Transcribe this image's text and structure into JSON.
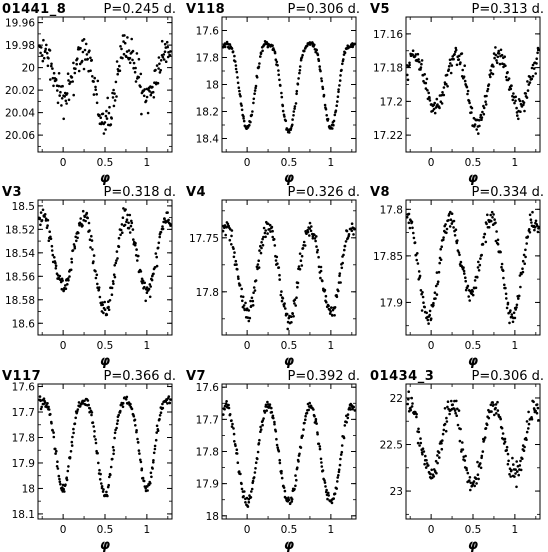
{
  "chart_data": [
    {
      "type": "scatter",
      "star": "01441_8",
      "period": "P=0.245 d.",
      "xlabel": "φ",
      "xlim": [
        -0.3,
        1.3
      ],
      "ylim": [
        19.955,
        20.075
      ],
      "yticks": [
        {
          "v": 19.96,
          "label": "19.96"
        },
        {
          "v": 19.98,
          "label": "19.98"
        },
        {
          "v": 20.0,
          "label": "20"
        },
        {
          "v": 20.02,
          "label": "20.02"
        },
        {
          "v": 20.04,
          "label": "20.04"
        },
        {
          "v": 20.06,
          "label": "20.06"
        }
      ],
      "xticks": [
        {
          "v": 0,
          "label": "0"
        },
        {
          "v": 0.5,
          "label": "0.5"
        },
        {
          "v": 1,
          "label": "1"
        }
      ],
      "curve": {
        "bright": 19.985,
        "faint": 20.05,
        "phase_bright": 0.25,
        "secondary_depth": 0.62,
        "shape": "ew",
        "scatter": 0.007
      },
      "y_inverted": true
    },
    {
      "type": "scatter",
      "star": "V118",
      "period": "P=0.306 d.",
      "xlabel": "φ",
      "xlim": [
        -0.3,
        1.3
      ],
      "ylim": [
        17.5,
        18.5
      ],
      "yticks": [
        {
          "v": 17.6,
          "label": "17.6"
        },
        {
          "v": 17.8,
          "label": "17.8"
        },
        {
          "v": 18.0,
          "label": "18"
        },
        {
          "v": 18.2,
          "label": "18.2"
        },
        {
          "v": 18.4,
          "label": "18.4"
        }
      ],
      "xticks": [
        {
          "v": 0,
          "label": "0"
        },
        {
          "v": 0.5,
          "label": "0.5"
        },
        {
          "v": 1,
          "label": "1"
        }
      ],
      "curve": {
        "bright": 17.7,
        "faint": 18.35,
        "phase_bright": 0.25,
        "secondary_depth": 0.95,
        "shape": "ea",
        "scatter": 0.012
      },
      "y_inverted": true
    },
    {
      "type": "scatter",
      "star": "V5",
      "period": "P=0.313 d.",
      "xlabel": "φ",
      "xlim": [
        -0.3,
        1.3
      ],
      "ylim": [
        17.15,
        17.23
      ],
      "yticks": [
        {
          "v": 17.16,
          "label": "17.16"
        },
        {
          "v": 17.18,
          "label": "17.18"
        },
        {
          "v": 17.2,
          "label": "17.2"
        },
        {
          "v": 17.22,
          "label": "17.22"
        }
      ],
      "xticks": [
        {
          "v": 0,
          "label": "0"
        },
        {
          "v": 0.5,
          "label": "0.5"
        },
        {
          "v": 1,
          "label": "1"
        }
      ],
      "curve": {
        "bright": 17.172,
        "faint": 17.215,
        "phase_bright": 0.3,
        "secondary_depth": 0.75,
        "shape": "ew",
        "scatter": 0.003
      },
      "y_inverted": true
    },
    {
      "type": "scatter",
      "star": "V3",
      "period": "P=0.318 d.",
      "xlabel": "φ",
      "xlim": [
        -0.3,
        1.3
      ],
      "ylim": [
        18.495,
        18.61
      ],
      "yticks": [
        {
          "v": 18.5,
          "label": "18.5"
        },
        {
          "v": 18.52,
          "label": "18.52"
        },
        {
          "v": 18.54,
          "label": "18.54"
        },
        {
          "v": 18.56,
          "label": "18.56"
        },
        {
          "v": 18.58,
          "label": "18.58"
        },
        {
          "v": 18.6,
          "label": "18.6"
        }
      ],
      "xticks": [
        {
          "v": 0,
          "label": "0"
        },
        {
          "v": 0.5,
          "label": "0.5"
        },
        {
          "v": 1,
          "label": "1"
        }
      ],
      "curve": {
        "bright": 18.51,
        "faint": 18.59,
        "phase_bright": 0.25,
        "secondary_depth": 0.75,
        "shape": "ew",
        "scatter": 0.004
      },
      "y_inverted": true
    },
    {
      "type": "scatter",
      "star": "V4",
      "period": "P=0.326 d.",
      "xlabel": "φ",
      "xlim": [
        -0.3,
        1.3
      ],
      "ylim": [
        17.715,
        17.84
      ],
      "yticks": [
        {
          "v": 17.75,
          "label": "17.75"
        },
        {
          "v": 17.8,
          "label": "17.8"
        }
      ],
      "xticks": [
        {
          "v": 0,
          "label": "0"
        },
        {
          "v": 0.5,
          "label": "0.5"
        },
        {
          "v": 1,
          "label": "1"
        }
      ],
      "curve": {
        "bright": 17.74,
        "faint": 17.825,
        "phase_bright": 0.25,
        "secondary_depth": 0.92,
        "shape": "ew",
        "scatter": 0.004
      },
      "y_inverted": true
    },
    {
      "type": "scatter",
      "star": "V8",
      "period": "P=0.334 d.",
      "xlabel": "φ",
      "xlim": [
        -0.3,
        1.3
      ],
      "ylim": [
        17.79,
        17.935
      ],
      "yticks": [
        {
          "v": 17.8,
          "label": "17.8"
        },
        {
          "v": 17.85,
          "label": "17.85"
        },
        {
          "v": 17.9,
          "label": "17.9"
        }
      ],
      "xticks": [
        {
          "v": 0,
          "label": "0"
        },
        {
          "v": 0.5,
          "label": "0.5"
        },
        {
          "v": 1,
          "label": "1"
        }
      ],
      "curve": {
        "bright": 17.81,
        "faint": 17.915,
        "phase_bright": 0.72,
        "secondary_depth": 0.75,
        "shape": "ew",
        "scatter": 0.005
      },
      "y_inverted": true
    },
    {
      "type": "scatter",
      "star": "V117",
      "period": "P=0.366 d.",
      "xlabel": "φ",
      "xlim": [
        -0.3,
        1.3
      ],
      "ylim": [
        17.59,
        18.12
      ],
      "yticks": [
        {
          "v": 17.6,
          "label": "17.6"
        },
        {
          "v": 17.7,
          "label": "17.7"
        },
        {
          "v": 17.8,
          "label": "17.8"
        },
        {
          "v": 17.9,
          "label": "17.9"
        },
        {
          "v": 18.0,
          "label": "18"
        },
        {
          "v": 18.1,
          "label": "18.1"
        }
      ],
      "xticks": [
        {
          "v": 0,
          "label": "0"
        },
        {
          "v": 0.5,
          "label": "0.5"
        },
        {
          "v": 1,
          "label": "1"
        }
      ],
      "curve": {
        "bright": 17.66,
        "faint": 18.03,
        "phase_bright": 0.25,
        "secondary_depth": 0.92,
        "shape": "ea",
        "scatter": 0.01
      },
      "y_inverted": true
    },
    {
      "type": "scatter",
      "star": "V7",
      "period": "P=0.392 d.",
      "xlabel": "φ",
      "xlim": [
        -0.3,
        1.3
      ],
      "ylim": [
        17.59,
        18.01
      ],
      "yticks": [
        {
          "v": 17.6,
          "label": "17.6"
        },
        {
          "v": 17.7,
          "label": "17.7"
        },
        {
          "v": 17.8,
          "label": "17.8"
        },
        {
          "v": 17.9,
          "label": "17.9"
        },
        {
          "v": 18.0,
          "label": "18"
        }
      ],
      "xticks": [
        {
          "v": 0,
          "label": "0"
        },
        {
          "v": 0.5,
          "label": "0.5"
        },
        {
          "v": 1,
          "label": "1"
        }
      ],
      "curve": {
        "bright": 17.655,
        "faint": 17.955,
        "phase_bright": 0.25,
        "secondary_depth": 1.0,
        "shape": "ew",
        "scatter": 0.008
      },
      "y_inverted": true
    },
    {
      "type": "scatter",
      "star": "01434_3",
      "period": "P=0.306 d.",
      "xlabel": "φ",
      "xlim": [
        -0.3,
        1.3
      ],
      "ylim": [
        21.85,
        23.3
      ],
      "yticks": [
        {
          "v": 22.0,
          "label": "22"
        },
        {
          "v": 22.5,
          "label": "22.5"
        },
        {
          "v": 23.0,
          "label": "23"
        }
      ],
      "xticks": [
        {
          "v": 0,
          "label": "0"
        },
        {
          "v": 0.5,
          "label": "0.5"
        },
        {
          "v": 1,
          "label": "1"
        }
      ],
      "curve": {
        "bright": 22.08,
        "faint": 22.95,
        "phase_bright": 0.25,
        "secondary_depth": 0.85,
        "shape": "ew",
        "scatter": 0.06
      },
      "y_inverted": true
    }
  ]
}
